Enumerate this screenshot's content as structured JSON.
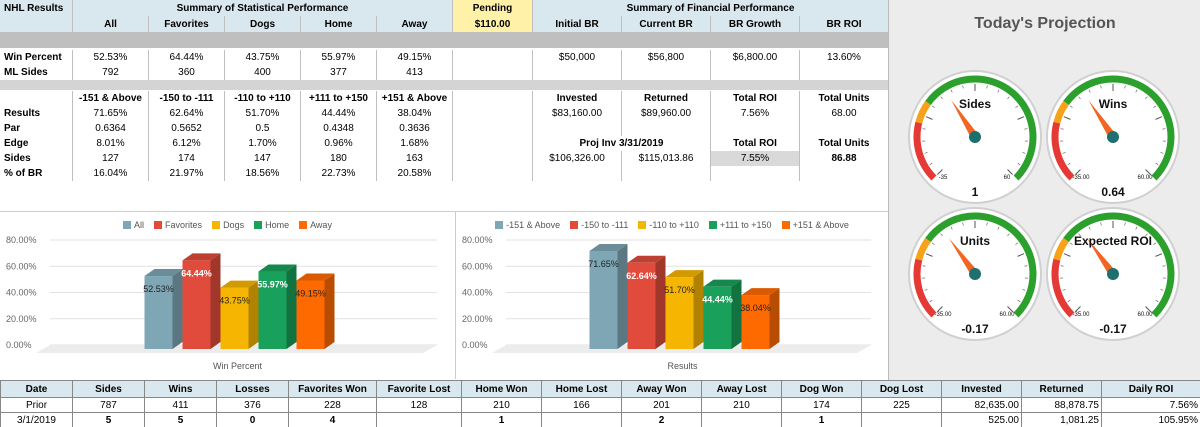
{
  "sheet": {
    "title": "NHL Results",
    "stat_header": "Summary of Statistical Performance",
    "stat_columns": [
      "All",
      "Favorites",
      "Dogs",
      "Home",
      "Away"
    ],
    "pending_label": "Pending",
    "pending_value": "$110.00",
    "fin_header": "Summary of Financial Performance",
    "fin_columns": [
      "Initial BR",
      "Current BR",
      "BR Growth",
      "BR ROI"
    ],
    "win_percent": {
      "label": "Win Percent",
      "values": [
        "52.53%",
        "64.44%",
        "43.75%",
        "55.97%",
        "49.15%"
      ]
    },
    "ml_sides": {
      "label": "ML Sides",
      "values": [
        "792",
        "360",
        "400",
        "377",
        "413"
      ]
    },
    "fin_values": [
      "$50,000",
      "$56,800",
      "$6,800.00",
      "13.60%"
    ],
    "range_columns": [
      "-151 & Above",
      "-150 to -111",
      "-110 to +110",
      "+111 to +150",
      "+151 & Above"
    ],
    "range_rows": [
      {
        "label": "Results",
        "values": [
          "71.65%",
          "62.64%",
          "51.70%",
          "44.44%",
          "38.04%"
        ]
      },
      {
        "label": "Par",
        "values": [
          "0.6364",
          "0.5652",
          "0.5",
          "0.4348",
          "0.3636"
        ]
      },
      {
        "label": "Edge",
        "values": [
          "8.01%",
          "6.12%",
          "1.70%",
          "0.96%",
          "1.68%"
        ]
      },
      {
        "label": "Sides",
        "values": [
          "127",
          "174",
          "147",
          "180",
          "163"
        ]
      },
      {
        "label": "% of BR",
        "values": [
          "16.04%",
          "21.97%",
          "18.56%",
          "22.73%",
          "20.58%"
        ]
      }
    ],
    "invest_headers": [
      "Invested",
      "Returned",
      "Total ROI",
      "Total Units"
    ],
    "invest_values": [
      "$83,160.00",
      "$89,960.00",
      "7.56%",
      "68.00"
    ],
    "proj_label": "Proj Inv 3/31/2019",
    "proj_headers": [
      "Total ROI",
      "Total Units"
    ],
    "proj_values": [
      "$106,326.00",
      "$115,013.86",
      "7.55%",
      "86.88"
    ]
  },
  "projection": {
    "title": "Today's Projection",
    "gauges": [
      {
        "label": "Sides",
        "min_label": "-35",
        "max_label": "60",
        "value_label": "1",
        "value": 1,
        "min": -35,
        "max": 60
      },
      {
        "label": "Wins",
        "min_label": "-35.00",
        "max_label": "60.00",
        "value_label": "0.64",
        "value": 0.64,
        "min": -35,
        "max": 60
      },
      {
        "label": "Units",
        "min_label": "-35.00",
        "max_label": "60.00",
        "value_label": "-0.17",
        "value": -0.17,
        "min": -35,
        "max": 60
      },
      {
        "label": "Expected ROI",
        "min_label": "-35.00",
        "max_label": "60.00",
        "value_label": "-0.17",
        "value": -0.17,
        "min": -35,
        "max": 60
      }
    ],
    "colors": {
      "red": "#e53935",
      "orange": "#f7a21b",
      "green": "#2ca02c",
      "needle": "#f26522"
    }
  },
  "chart_data": [
    {
      "type": "bar",
      "title": "",
      "xlabel": "Win Percent",
      "ylabel": "",
      "ylim": [
        0,
        80
      ],
      "ytick_labels": [
        "0.00%",
        "20.00%",
        "40.00%",
        "60.00%",
        "80.00%"
      ],
      "categories": [
        "Win Percent"
      ],
      "series": [
        {
          "name": "All",
          "values": [
            52.53
          ],
          "label": "52.53%",
          "color": "#7ea6b4"
        },
        {
          "name": "Favorites",
          "values": [
            64.44
          ],
          "label": "64.44%",
          "color": "#e04b3c"
        },
        {
          "name": "Dogs",
          "values": [
            43.75
          ],
          "label": "43.75%",
          "color": "#f6b500"
        },
        {
          "name": "Home",
          "values": [
            55.97
          ],
          "label": "55.97%",
          "color": "#19a05a"
        },
        {
          "name": "Away",
          "values": [
            49.15
          ],
          "label": "49.15%",
          "color": "#ff6a00"
        }
      ],
      "legend": "top",
      "grid": true
    },
    {
      "type": "bar",
      "title": "",
      "xlabel": "Results",
      "ylabel": "",
      "ylim": [
        0,
        80
      ],
      "ytick_labels": [
        "0.00%",
        "20.00%",
        "40.00%",
        "60.00%",
        "80.00%"
      ],
      "categories": [
        "Results"
      ],
      "series": [
        {
          "name": "-151 & Above",
          "values": [
            71.65
          ],
          "label": "71.65%",
          "color": "#7ea6b4"
        },
        {
          "name": "-150 to -111",
          "values": [
            62.64
          ],
          "label": "62.64%",
          "color": "#e04b3c"
        },
        {
          "name": "-110 to +110",
          "values": [
            51.7
          ],
          "label": "51.70%",
          "color": "#f6b500"
        },
        {
          "name": "+111 to +150",
          "values": [
            44.44
          ],
          "label": "44.44%",
          "color": "#19a05a"
        },
        {
          "name": "+151 & Above",
          "values": [
            38.04
          ],
          "label": "38.04%",
          "color": "#ff6a00"
        }
      ],
      "legend": "top",
      "grid": true
    }
  ],
  "daily": {
    "headers": [
      "Date",
      "Sides",
      "Wins",
      "Losses",
      "Favorites Won",
      "Favorite Lost",
      "Home Won",
      "Home Lost",
      "Away Won",
      "Away Lost",
      "Dog Won",
      "Dog Lost",
      "Invested",
      "Returned",
      "Daily ROI"
    ],
    "rows": [
      [
        "Prior",
        "787",
        "411",
        "376",
        "228",
        "128",
        "210",
        "166",
        "201",
        "210",
        "174",
        "225",
        "82,635.00",
        "88,878.75",
        "7.56%"
      ],
      [
        "3/1/2019",
        "5",
        "5",
        "0",
        "4",
        "",
        "1",
        "",
        "2",
        "",
        "1",
        "",
        "525.00",
        "1,081.25",
        "105.95%"
      ]
    ]
  }
}
